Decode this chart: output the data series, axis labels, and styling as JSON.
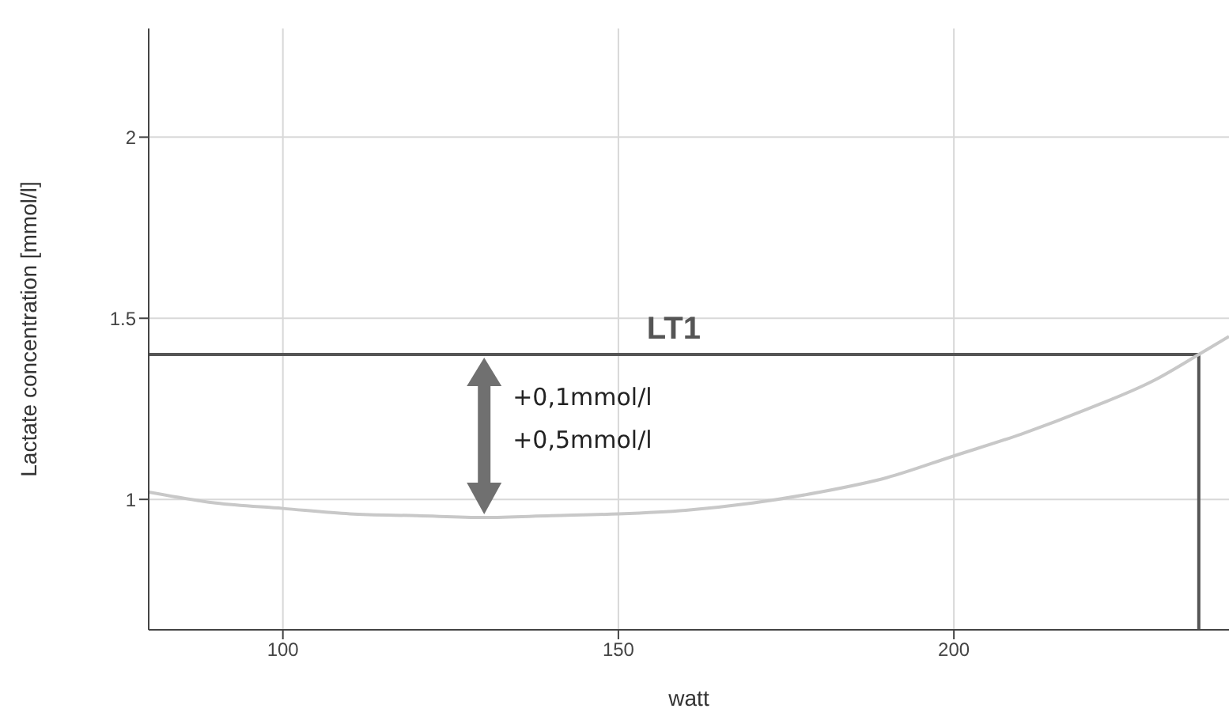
{
  "chart_data": {
    "type": "line",
    "xlabel": "watt",
    "ylabel": "Lactate concentration [mmol/l]",
    "x": [
      80,
      90,
      100,
      110,
      120,
      130,
      140,
      150,
      160,
      170,
      180,
      190,
      200,
      210,
      220,
      230,
      236.5,
      241
    ],
    "series": [
      {
        "color": "#c8c8c8",
        "values": [
          1.02,
          0.99,
          0.975,
          0.96,
          0.955,
          0.95,
          0.955,
          0.96,
          0.97,
          0.99,
          1.02,
          1.06,
          1.12,
          1.18,
          1.25,
          1.33,
          1.4,
          1.45
        ]
      }
    ],
    "xlim": [
      80,
      241
    ],
    "xticks": [
      100,
      150,
      200
    ],
    "ylim": [
      0.64,
      2.3
    ],
    "yticks": [
      1,
      1.5,
      2
    ],
    "grid": true,
    "marker": "none",
    "line_style": "solid",
    "ref_lines": [
      {
        "axis": "y",
        "value": 1.4,
        "label": "LT1",
        "color": "#555555"
      },
      {
        "axis": "x",
        "value": 236.5,
        "color": "#555555"
      }
    ],
    "annotations": [
      {
        "text": "+0,1mmol/l",
        "x": 130,
        "y": 1.4
      },
      {
        "text": "+0,5mmol/l",
        "x": 130,
        "y": 0.95
      }
    ]
  }
}
